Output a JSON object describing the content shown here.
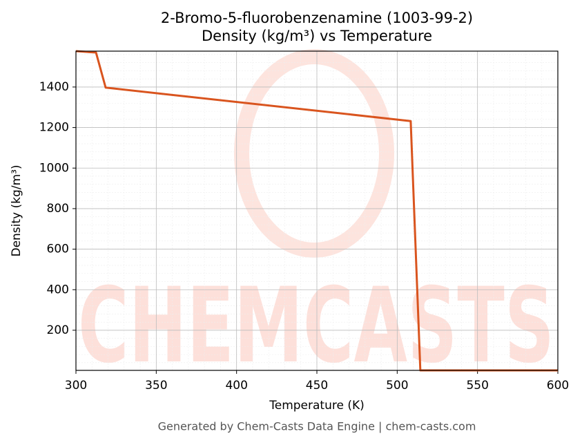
{
  "chart_data": {
    "type": "line",
    "title": "2-Bromo-5-fluorobenzenamine (1003-99-2)",
    "subtitle": "Density (kg/m³) vs Temperature",
    "x_label": "Temperature (K)",
    "y_label": "Density (kg/m³)",
    "x": [
      300,
      312.5,
      318.5,
      508.4,
      514.4,
      600
    ],
    "values": [
      1577,
      1570,
      1397,
      1232,
      2,
      2
    ],
    "color": "#d9541e",
    "xlim": [
      300,
      600
    ],
    "xticks": [
      300,
      350,
      400,
      450,
      500,
      550,
      600
    ],
    "ylim": [
      2,
      1577
    ],
    "yticks": [
      200,
      400,
      600,
      800,
      1000,
      1200,
      1400
    ],
    "grid": true,
    "watermark": "CHEMCASTS",
    "footer": "Generated by Chem-Casts Data Engine | chem-casts.com"
  }
}
